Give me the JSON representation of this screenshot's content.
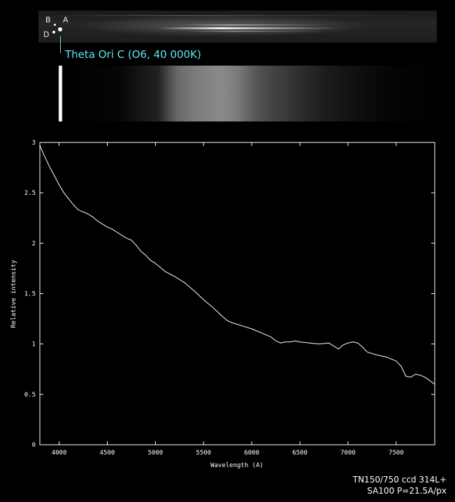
{
  "spectrum_image": {
    "star_labels": [
      "B",
      "A",
      "D"
    ],
    "target_label": "Theta Ori C (O6, 40 000K)"
  },
  "instrument_notes": [
    "TN150/750 ccd 314L+",
    "SA100 P=21.5A/px"
  ],
  "colors": {
    "background": "#000000",
    "plot_line": "#ffffff",
    "target_label": "#5ee6f0"
  },
  "chart_data": {
    "type": "line",
    "title": "",
    "xlabel": "Wavelength (A)",
    "ylabel": "Relative intensity",
    "xlim": [
      3800,
      7900
    ],
    "ylim": [
      0,
      3
    ],
    "xticks": [
      4000,
      4500,
      5000,
      5500,
      6000,
      6500,
      7000,
      7500
    ],
    "yticks": [
      0,
      0.5,
      1,
      1.5,
      2,
      2.5,
      3
    ],
    "ytick_labels": [
      "0",
      "0.5",
      "1",
      "1.5",
      "2",
      "2.5",
      "3"
    ],
    "grid": false,
    "series": [
      {
        "x": [
          3800,
          3850,
          3900,
          3950,
          4000,
          4050,
          4100,
          4150,
          4200,
          4250,
          4300,
          4350,
          4400,
          4450,
          4500,
          4550,
          4600,
          4650,
          4700,
          4750,
          4800,
          4850,
          4900,
          4950,
          5000,
          5100,
          5200,
          5300,
          5400,
          5500,
          5600,
          5700,
          5750,
          5800,
          5900,
          6000,
          6100,
          6200,
          6250,
          6300,
          6350,
          6400,
          6450,
          6500,
          6600,
          6700,
          6800,
          6850,
          6900,
          6950,
          7000,
          7050,
          7100,
          7150,
          7200,
          7300,
          7400,
          7450,
          7500,
          7550,
          7600,
          7650,
          7700,
          7750,
          7800,
          7900
        ],
        "y": [
          2.97,
          2.86,
          2.76,
          2.67,
          2.58,
          2.5,
          2.44,
          2.38,
          2.33,
          2.31,
          2.29,
          2.26,
          2.22,
          2.19,
          2.16,
          2.14,
          2.11,
          2.08,
          2.05,
          2.03,
          1.98,
          1.92,
          1.88,
          1.83,
          1.8,
          1.72,
          1.67,
          1.61,
          1.53,
          1.44,
          1.36,
          1.27,
          1.23,
          1.21,
          1.18,
          1.15,
          1.11,
          1.07,
          1.03,
          1.01,
          1.02,
          1.02,
          1.03,
          1.02,
          1.01,
          1.0,
          1.01,
          0.98,
          0.95,
          0.99,
          1.01,
          1.02,
          1.01,
          0.97,
          0.92,
          0.89,
          0.87,
          0.85,
          0.83,
          0.78,
          0.68,
          0.67,
          0.7,
          0.69,
          0.67,
          0.6
        ]
      }
    ]
  }
}
